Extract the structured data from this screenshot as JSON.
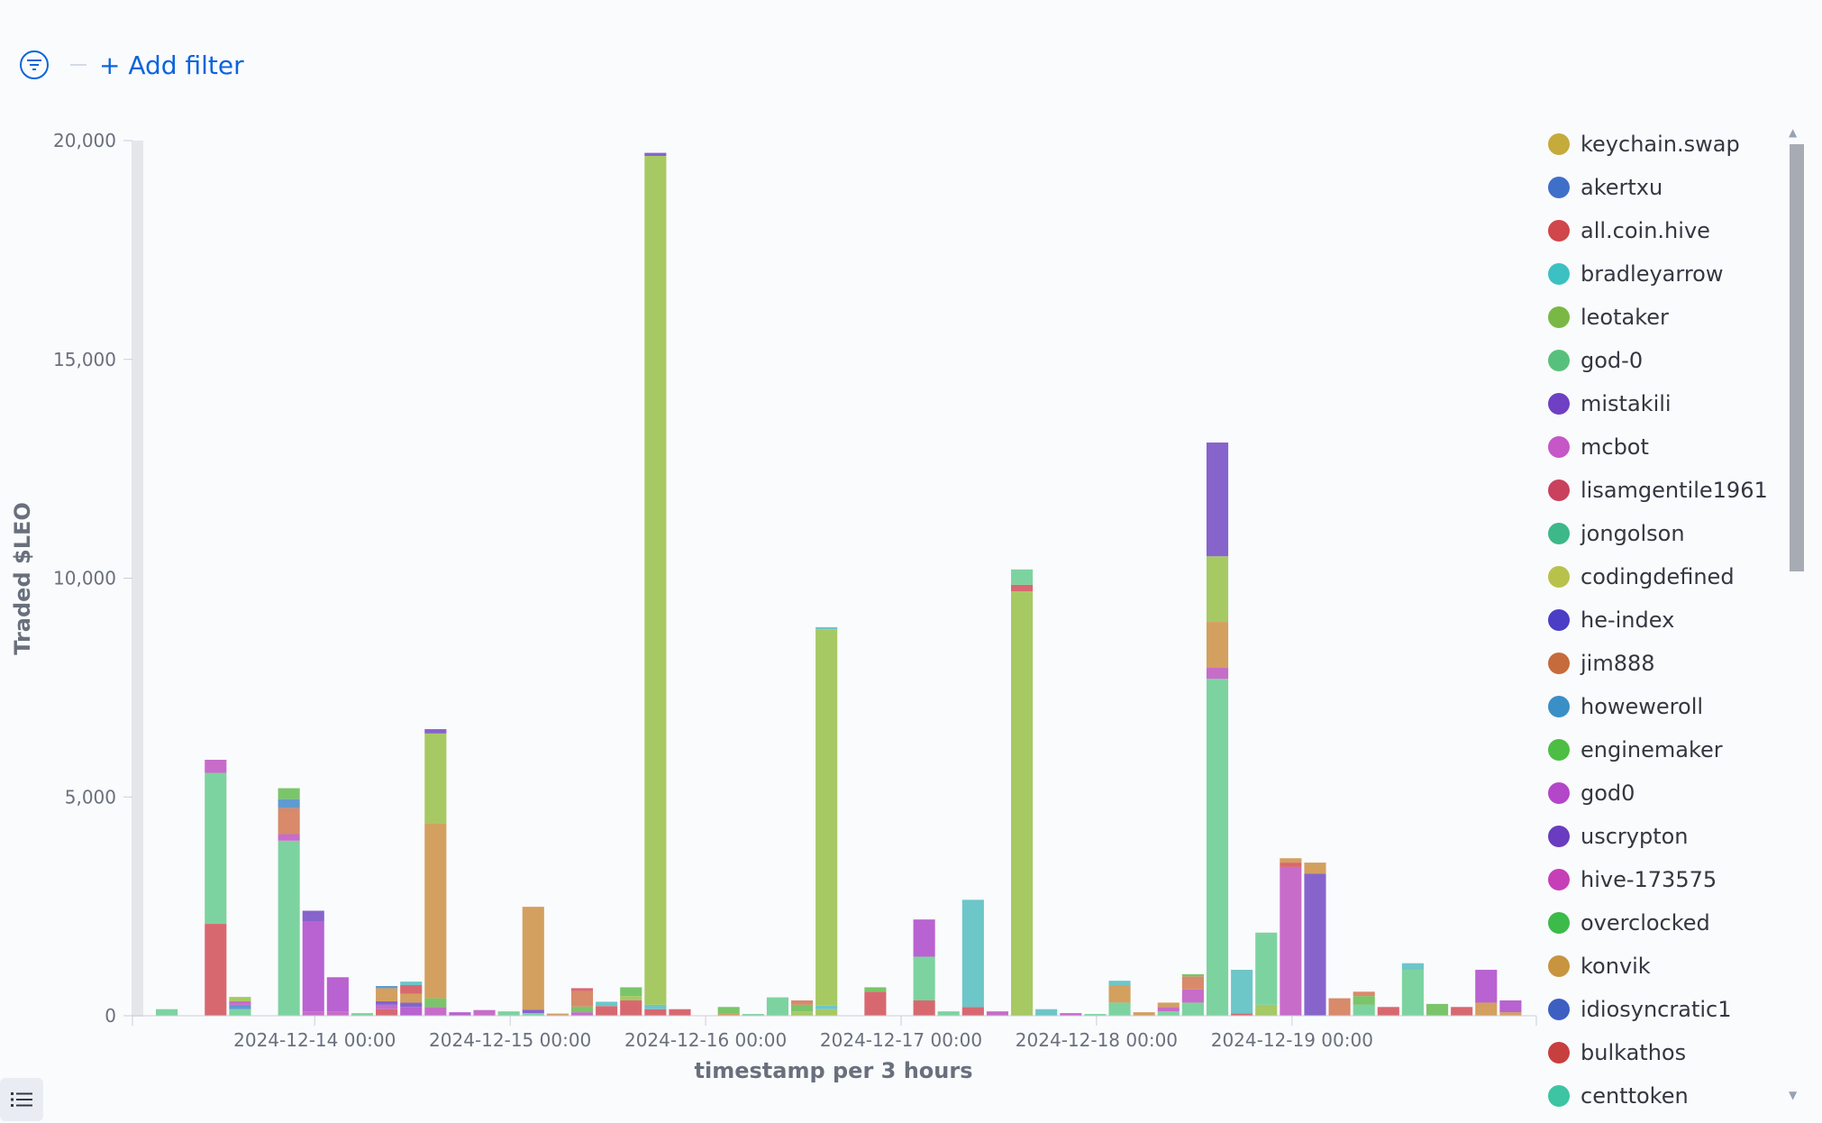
{
  "filter_bar": {
    "add_filter_label": "+ Add filter",
    "filter_icon": "filter-icon"
  },
  "legend_toggle_icon": "list-icon",
  "chart_data": {
    "type": "bar",
    "stacked": true,
    "xlabel": "timestamp per 3 hours",
    "ylabel": "Traded $LEO",
    "ylim": [
      0,
      20000
    ],
    "y_ticks": [
      0,
      5000,
      10000,
      15000,
      20000
    ],
    "y_tick_labels": [
      "0",
      "5,000",
      "10,000",
      "15,000",
      "20,000"
    ],
    "x_tick_labels": [
      "2024-12-14 00:00",
      "2024-12-15 00:00",
      "2024-12-16 00:00",
      "2024-12-17 00:00",
      "2024-12-18 00:00",
      "2024-12-19 00:00"
    ],
    "x_tick_slots": [
      6,
      14,
      22,
      30,
      38,
      46
    ],
    "slot_count": 56.5,
    "legend_position": "right",
    "legend": [
      {
        "name": "keychain.swap",
        "color": "#c4ab3b"
      },
      {
        "name": "akertxu",
        "color": "#3f6fc9"
      },
      {
        "name": "all.coin.hive",
        "color": "#d0464a"
      },
      {
        "name": "bradleyarrow",
        "color": "#3dc0c2"
      },
      {
        "name": "leotaker",
        "color": "#7ab845"
      },
      {
        "name": "god-0",
        "color": "#57c17b"
      },
      {
        "name": "mistakili",
        "color": "#6f3fc4"
      },
      {
        "name": "mcbot",
        "color": "#c557c7"
      },
      {
        "name": "lisamgentile1961",
        "color": "#c9415d"
      },
      {
        "name": "jongolson",
        "color": "#3cb889"
      },
      {
        "name": "codingdefined",
        "color": "#b8c24a"
      },
      {
        "name": "he-index",
        "color": "#4b3dc5"
      },
      {
        "name": "jim888",
        "color": "#c66b3c"
      },
      {
        "name": "howeweroll",
        "color": "#3a8fc6"
      },
      {
        "name": "enginemaker",
        "color": "#4dbe44"
      },
      {
        "name": "god0",
        "color": "#b446c9"
      },
      {
        "name": "uscrypton",
        "color": "#6a3cbf"
      },
      {
        "name": "hive-173575",
        "color": "#c63fb6"
      },
      {
        "name": "overclocked",
        "color": "#3cba4a"
      },
      {
        "name": "konvik",
        "color": "#c89440"
      },
      {
        "name": "idiosyncratic1",
        "color": "#3c5fc1"
      },
      {
        "name": "bulkathos",
        "color": "#c83f3f"
      },
      {
        "name": "centtoken",
        "color": "#3dc4a3"
      }
    ],
    "bars": [
      {
        "slot": 0,
        "segments": [
          {
            "value": 150,
            "color": "#7dd3a0"
          }
        ]
      },
      {
        "slot": 2,
        "segments": [
          {
            "value": 2100,
            "color": "#d86870"
          },
          {
            "value": 3450,
            "color": "#7dd3a0"
          },
          {
            "value": 300,
            "color": "#c76cc9"
          }
        ]
      },
      {
        "slot": 3,
        "segments": [
          {
            "value": 150,
            "color": "#7dd3a0"
          },
          {
            "value": 100,
            "color": "#5f9bcf"
          },
          {
            "value": 80,
            "color": "#c76cc9"
          },
          {
            "value": 100,
            "color": "#a7c964"
          }
        ]
      },
      {
        "slot": 5,
        "segments": [
          {
            "value": 4000,
            "color": "#7dd3a0"
          },
          {
            "value": 150,
            "color": "#c76cc9"
          },
          {
            "value": 600,
            "color": "#d88a6a"
          },
          {
            "value": 200,
            "color": "#5f9bcf"
          },
          {
            "value": 250,
            "color": "#7ac56a"
          }
        ]
      },
      {
        "slot": 6,
        "segments": [
          {
            "value": 100,
            "color": "#c76cc9"
          },
          {
            "value": 2050,
            "color": "#b962d1"
          },
          {
            "value": 250,
            "color": "#8664cc"
          }
        ]
      },
      {
        "slot": 7,
        "segments": [
          {
            "value": 100,
            "color": "#c76cc9"
          },
          {
            "value": 780,
            "color": "#b962d1"
          }
        ]
      },
      {
        "slot": 8,
        "segments": [
          {
            "value": 60,
            "color": "#7dd3a0"
          }
        ]
      },
      {
        "slot": 9,
        "segments": [
          {
            "value": 150,
            "color": "#d86870"
          },
          {
            "value": 100,
            "color": "#c76cc9"
          },
          {
            "value": 80,
            "color": "#8664cc"
          },
          {
            "value": 300,
            "color": "#d3a05f"
          },
          {
            "value": 50,
            "color": "#5f9bcf"
          }
        ]
      },
      {
        "slot": 10,
        "segments": [
          {
            "value": 200,
            "color": "#b962d1"
          },
          {
            "value": 100,
            "color": "#8664cc"
          },
          {
            "value": 200,
            "color": "#d3a05f"
          },
          {
            "value": 200,
            "color": "#d86870"
          },
          {
            "value": 80,
            "color": "#6dc6c8"
          }
        ]
      },
      {
        "slot": 11,
        "segments": [
          {
            "value": 200,
            "color": "#c76cc9"
          },
          {
            "value": 200,
            "color": "#7ac56a"
          },
          {
            "value": 4000,
            "color": "#d3a05f"
          },
          {
            "value": 2050,
            "color": "#a7c964"
          },
          {
            "value": 100,
            "color": "#8664cc"
          }
        ]
      },
      {
        "slot": 12,
        "segments": [
          {
            "value": 80,
            "color": "#b962d1"
          }
        ]
      },
      {
        "slot": 13,
        "segments": [
          {
            "value": 130,
            "color": "#c76cc9"
          }
        ]
      },
      {
        "slot": 14,
        "segments": [
          {
            "value": 100,
            "color": "#7dd3a0"
          }
        ]
      },
      {
        "slot": 15,
        "segments": [
          {
            "value": 60,
            "color": "#7dd3a0"
          },
          {
            "value": 80,
            "color": "#8664cc"
          },
          {
            "value": 2350,
            "color": "#d3a05f"
          }
        ]
      },
      {
        "slot": 16,
        "segments": [
          {
            "value": 50,
            "color": "#d3a05f"
          }
        ]
      },
      {
        "slot": 17,
        "segments": [
          {
            "value": 80,
            "color": "#c76cc9"
          },
          {
            "value": 130,
            "color": "#7ac56a"
          },
          {
            "value": 350,
            "color": "#d88a6a"
          },
          {
            "value": 70,
            "color": "#d86870"
          }
        ]
      },
      {
        "slot": 18,
        "segments": [
          {
            "value": 220,
            "color": "#d86870"
          },
          {
            "value": 100,
            "color": "#6dc6c8"
          }
        ]
      },
      {
        "slot": 19,
        "segments": [
          {
            "value": 350,
            "color": "#d86870"
          },
          {
            "value": 100,
            "color": "#a7c964"
          },
          {
            "value": 200,
            "color": "#7ac56a"
          }
        ]
      },
      {
        "slot": 20,
        "segments": [
          {
            "value": 150,
            "color": "#d86870"
          },
          {
            "value": 100,
            "color": "#6dc6c8"
          },
          {
            "value": 19400,
            "color": "#a7c964"
          },
          {
            "value": 70,
            "color": "#8664cc"
          }
        ]
      },
      {
        "slot": 21,
        "segments": [
          {
            "value": 150,
            "color": "#d86870"
          }
        ]
      },
      {
        "slot": 23,
        "segments": [
          {
            "value": 50,
            "color": "#d3a05f"
          },
          {
            "value": 150,
            "color": "#7ac56a"
          }
        ]
      },
      {
        "slot": 24,
        "segments": [
          {
            "value": 40,
            "color": "#7dd3a0"
          }
        ]
      },
      {
        "slot": 25,
        "segments": [
          {
            "value": 420,
            "color": "#7dd3a0"
          }
        ]
      },
      {
        "slot": 26,
        "segments": [
          {
            "value": 100,
            "color": "#a7c964"
          },
          {
            "value": 150,
            "color": "#7ac56a"
          },
          {
            "value": 100,
            "color": "#d88a6a"
          }
        ]
      },
      {
        "slot": 27,
        "segments": [
          {
            "value": 150,
            "color": "#a7c964"
          },
          {
            "value": 80,
            "color": "#6dc6c8"
          },
          {
            "value": 8600,
            "color": "#a7c964"
          },
          {
            "value": 50,
            "color": "#6dc6c8"
          }
        ]
      },
      {
        "slot": 29,
        "segments": [
          {
            "value": 550,
            "color": "#d86870"
          },
          {
            "value": 100,
            "color": "#7ac56a"
          }
        ]
      },
      {
        "slot": 31,
        "segments": [
          {
            "value": 350,
            "color": "#d86870"
          },
          {
            "value": 1000,
            "color": "#7dd3a0"
          },
          {
            "value": 850,
            "color": "#b962d1"
          }
        ]
      },
      {
        "slot": 32,
        "segments": [
          {
            "value": 100,
            "color": "#7dd3a0"
          }
        ]
      },
      {
        "slot": 33,
        "segments": [
          {
            "value": 200,
            "color": "#d86870"
          },
          {
            "value": 2450,
            "color": "#6dc6c8"
          }
        ]
      },
      {
        "slot": 34,
        "segments": [
          {
            "value": 100,
            "color": "#c76cc9"
          }
        ]
      },
      {
        "slot": 35,
        "segments": [
          {
            "value": 9700,
            "color": "#a7c964"
          },
          {
            "value": 150,
            "color": "#d86870"
          },
          {
            "value": 350,
            "color": "#7dd3a0"
          }
        ]
      },
      {
        "slot": 36,
        "segments": [
          {
            "value": 150,
            "color": "#6dc6c8"
          }
        ]
      },
      {
        "slot": 37,
        "segments": [
          {
            "value": 60,
            "color": "#c76cc9"
          }
        ]
      },
      {
        "slot": 38,
        "segments": [
          {
            "value": 40,
            "color": "#7dd3a0"
          }
        ]
      },
      {
        "slot": 39,
        "segments": [
          {
            "value": 300,
            "color": "#7dd3a0"
          },
          {
            "value": 400,
            "color": "#d3a05f"
          },
          {
            "value": 100,
            "color": "#6dc6c8"
          }
        ]
      },
      {
        "slot": 40,
        "segments": [
          {
            "value": 80,
            "color": "#d3a05f"
          }
        ]
      },
      {
        "slot": 41,
        "segments": [
          {
            "value": 100,
            "color": "#7dd3a0"
          },
          {
            "value": 100,
            "color": "#c76cc9"
          },
          {
            "value": 100,
            "color": "#d3a05f"
          }
        ]
      },
      {
        "slot": 42,
        "segments": [
          {
            "value": 300,
            "color": "#7dd3a0"
          },
          {
            "value": 300,
            "color": "#c76cc9"
          },
          {
            "value": 300,
            "color": "#d88a6a"
          },
          {
            "value": 50,
            "color": "#7ac56a"
          }
        ]
      },
      {
        "slot": 43,
        "segments": [
          {
            "value": 7700,
            "color": "#7dd3a0"
          },
          {
            "value": 250,
            "color": "#c76cc9"
          },
          {
            "value": 1050,
            "color": "#d3a05f"
          },
          {
            "value": 1500,
            "color": "#a7c964"
          },
          {
            "value": 2600,
            "color": "#8664cc"
          }
        ]
      },
      {
        "slot": 44,
        "segments": [
          {
            "value": 50,
            "color": "#d86870"
          },
          {
            "value": 1000,
            "color": "#6dc6c8"
          }
        ]
      },
      {
        "slot": 45,
        "segments": [
          {
            "value": 250,
            "color": "#a7c964"
          },
          {
            "value": 1650,
            "color": "#7dd3a0"
          }
        ]
      },
      {
        "slot": 46,
        "segments": [
          {
            "value": 3400,
            "color": "#c76cc9"
          },
          {
            "value": 100,
            "color": "#d86870"
          },
          {
            "value": 100,
            "color": "#d3a05f"
          }
        ]
      },
      {
        "slot": 47,
        "segments": [
          {
            "value": 3250,
            "color": "#8664cc"
          },
          {
            "value": 250,
            "color": "#d3a05f"
          }
        ]
      },
      {
        "slot": 48,
        "segments": [
          {
            "value": 400,
            "color": "#d88a6a"
          }
        ]
      },
      {
        "slot": 49,
        "segments": [
          {
            "value": 250,
            "color": "#7dd3a0"
          },
          {
            "value": 200,
            "color": "#7ac56a"
          },
          {
            "value": 100,
            "color": "#d88a6a"
          }
        ]
      },
      {
        "slot": 50,
        "segments": [
          {
            "value": 200,
            "color": "#d86870"
          }
        ]
      },
      {
        "slot": 51,
        "segments": [
          {
            "value": 1050,
            "color": "#7dd3a0"
          },
          {
            "value": 150,
            "color": "#6dc6c8"
          }
        ]
      },
      {
        "slot": 52,
        "segments": [
          {
            "value": 270,
            "color": "#7ac56a"
          }
        ]
      },
      {
        "slot": 53,
        "segments": [
          {
            "value": 200,
            "color": "#d86870"
          }
        ]
      },
      {
        "slot": 54,
        "segments": [
          {
            "value": 300,
            "color": "#d3a05f"
          },
          {
            "value": 750,
            "color": "#b962d1"
          }
        ]
      },
      {
        "slot": 55,
        "segments": [
          {
            "value": 80,
            "color": "#d3a05f"
          },
          {
            "value": 270,
            "color": "#b962d1"
          }
        ]
      }
    ]
  }
}
